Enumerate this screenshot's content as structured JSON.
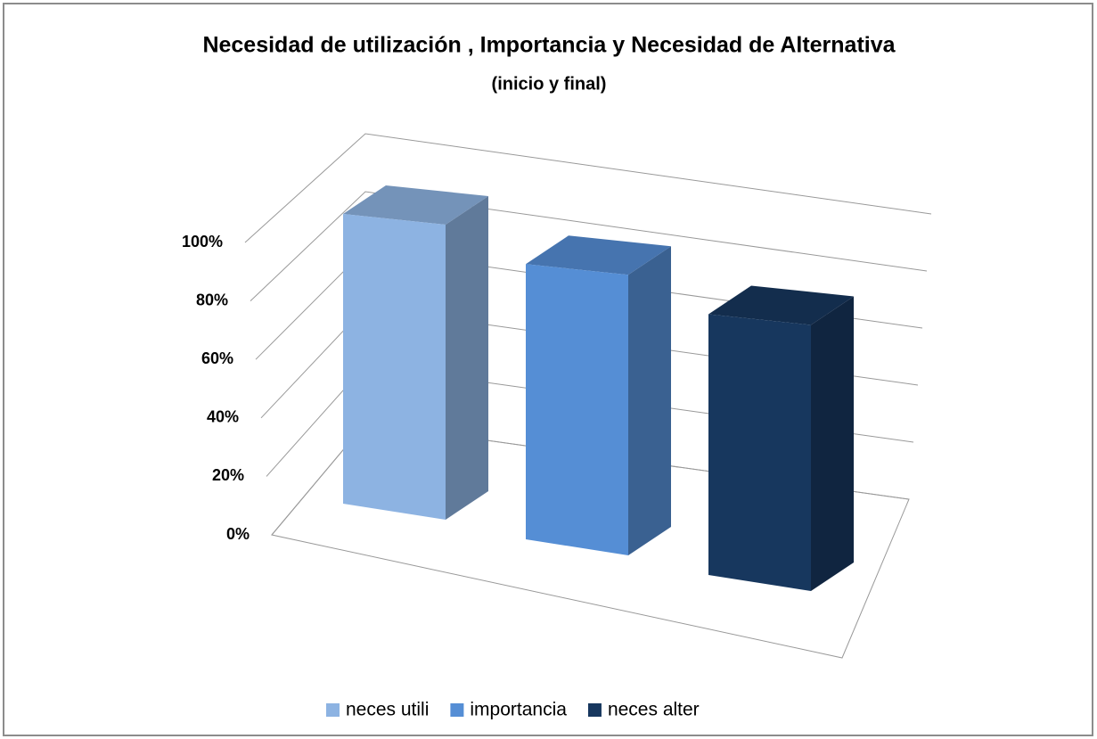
{
  "chart_data": {
    "type": "bar3d",
    "title": "Necesidad de utilización , Importancia y Necesidad de Alternativa",
    "subtitle": "(inicio y final)",
    "series": [
      {
        "name": "neces utili",
        "color": "#8db3e2",
        "values": [
          100
        ]
      },
      {
        "name": "importancia",
        "color": "#558ed5",
        "values": [
          95
        ]
      },
      {
        "name": "neces alter",
        "color": "#17375e",
        "values": [
          90
        ]
      }
    ],
    "ylim": [
      0,
      100
    ],
    "yticks": [
      {
        "value": 0,
        "label": "0%"
      },
      {
        "value": 20,
        "label": "20%"
      },
      {
        "value": 40,
        "label": "40%"
      },
      {
        "value": 60,
        "label": "60%"
      },
      {
        "value": 80,
        "label": "80%"
      },
      {
        "value": 100,
        "label": "100%"
      }
    ],
    "grid": true,
    "legend": "bottom"
  }
}
